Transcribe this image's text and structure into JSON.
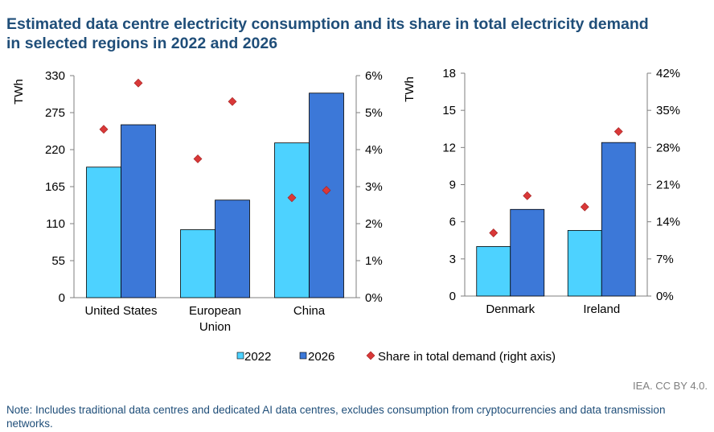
{
  "title_lines": [
    "Estimated data centre electricity consumption and its share in total electricity demand",
    "in selected regions in 2022 and 2026"
  ],
  "legend": {
    "items": [
      "2022",
      "2026",
      "Share in total demand (right axis)"
    ],
    "placement": "bottom"
  },
  "credit": "IEA. CC BY 4.0.",
  "note": "Note: Includes traditional data centres and dedicated AI data centres, excludes consumption from cryptocurrencies and data transmission networks.",
  "colors": {
    "s2022": "#4dd2ff",
    "s2026": "#3c78d8",
    "share": "#d93838",
    "title": "#1f4e79"
  },
  "chart_data": [
    {
      "type": "bar",
      "categories": [
        [
          "United States"
        ],
        [
          "European",
          "Union"
        ],
        [
          "China"
        ]
      ],
      "ylabel": "TWh",
      "ylim": [
        0,
        330
      ],
      "yticks": [
        0,
        55,
        110,
        165,
        220,
        275,
        330
      ],
      "y2lim": [
        0,
        6
      ],
      "y2ticks": [
        "0%",
        "1%",
        "2%",
        "3%",
        "4%",
        "5%",
        "6%"
      ],
      "series": [
        {
          "name": "2022",
          "values": [
            194,
            101,
            230
          ]
        },
        {
          "name": "2026",
          "values": [
            257,
            145,
            304
          ]
        },
        {
          "name": "Share in total demand (right axis)",
          "type": "scatter",
          "axis": "right",
          "values_2022": [
            4.55,
            3.75,
            2.7
          ],
          "values_2026": [
            5.8,
            5.3,
            2.9
          ]
        }
      ]
    },
    {
      "type": "bar",
      "categories": [
        [
          "Denmark"
        ],
        [
          "Ireland"
        ]
      ],
      "ylabel": "TWh",
      "ylim": [
        0,
        18
      ],
      "yticks": [
        0,
        3,
        6,
        9,
        12,
        15,
        18
      ],
      "y2lim": [
        0,
        42
      ],
      "y2ticks": [
        "0%",
        "7%",
        "14%",
        "21%",
        "28%",
        "35%",
        "42%"
      ],
      "series": [
        {
          "name": "2022",
          "values": [
            4.0,
            5.3
          ]
        },
        {
          "name": "2026",
          "values": [
            7.0,
            12.4
          ]
        },
        {
          "name": "Share in total demand (right axis)",
          "type": "scatter",
          "axis": "right",
          "values_2022": [
            11.9,
            16.8
          ],
          "values_2026": [
            18.9,
            31.0
          ]
        }
      ]
    }
  ]
}
